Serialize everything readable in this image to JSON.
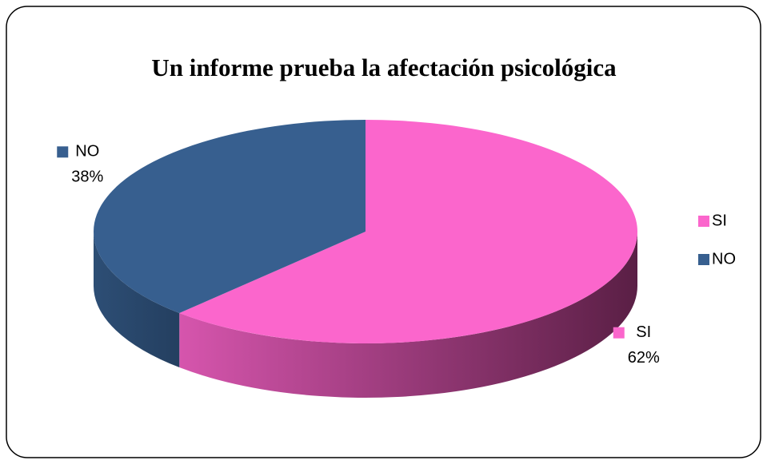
{
  "chart_data": {
    "type": "pie3d",
    "title": "Un informe prueba la afectación psicológica",
    "categories": [
      "SI",
      "NO"
    ],
    "values": [
      62,
      38
    ],
    "value_labels": [
      "62%",
      "38%"
    ],
    "colors": [
      "#fb66cc",
      "#375f8f"
    ],
    "legend": "right"
  }
}
